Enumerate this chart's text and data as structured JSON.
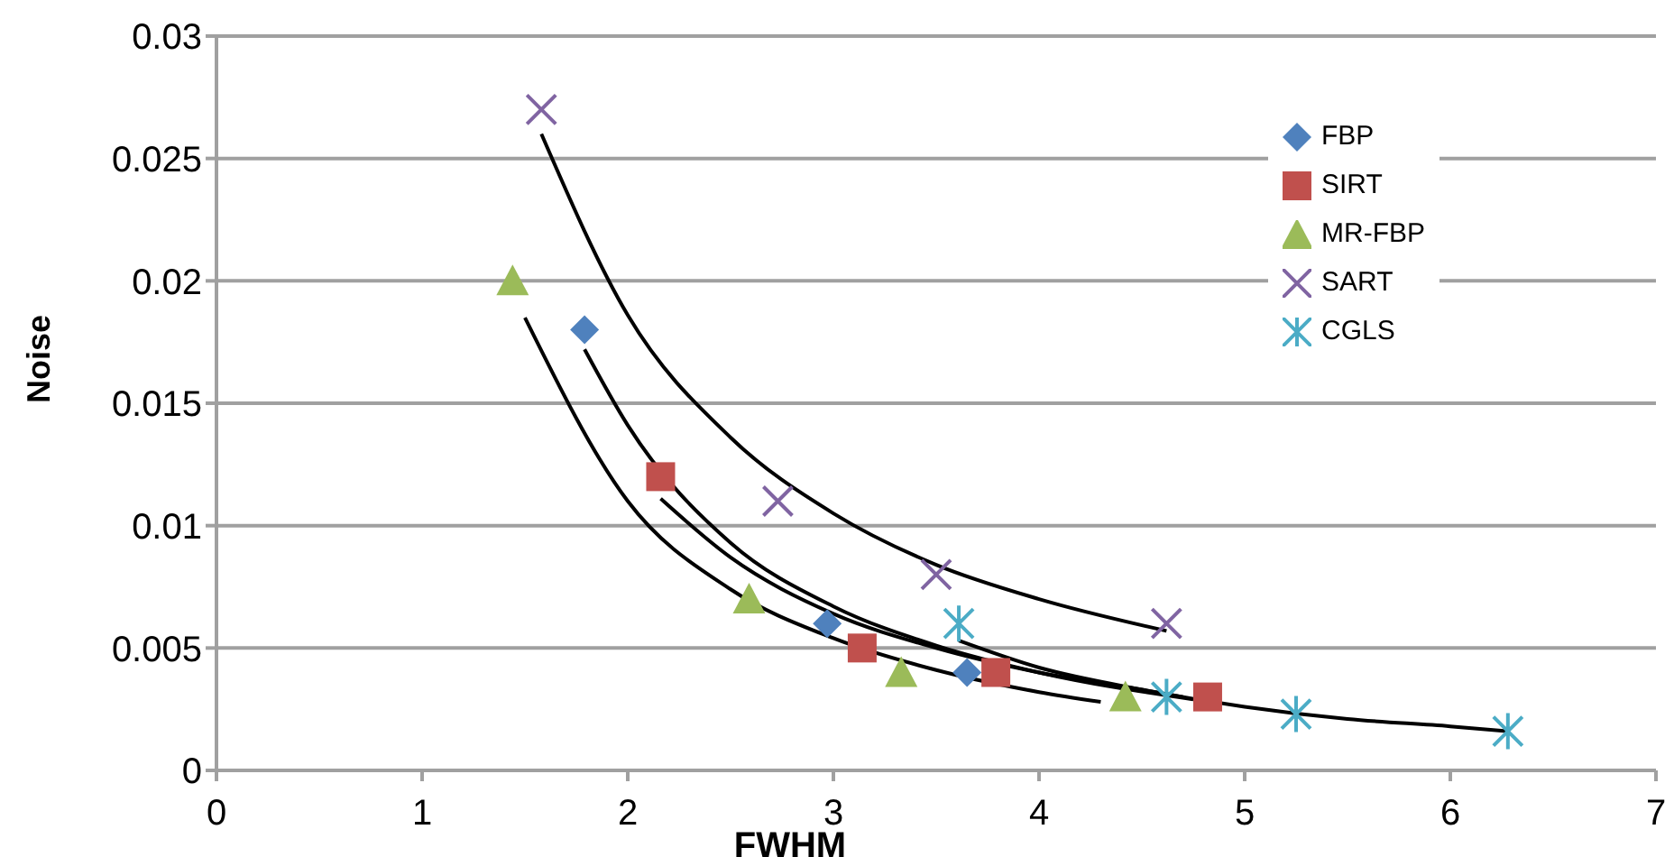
{
  "chart_data": {
    "type": "scatter",
    "xlabel": "FWHM",
    "ylabel": "Noise",
    "xlim": [
      0,
      7
    ],
    "xticks": [
      0,
      1,
      2,
      3,
      4,
      5,
      6,
      7
    ],
    "ylim": [
      0,
      0.03
    ],
    "yticks": [
      0,
      0.005,
      0.01,
      0.015,
      0.02,
      0.025,
      0.03
    ],
    "grid": "y",
    "legend": "top right",
    "series": [
      {
        "name": "FBP",
        "color": "#4f81bd",
        "marker": "diamond",
        "x": [
          1.79,
          2.97,
          3.65
        ],
        "values": [
          0.018,
          0.006,
          0.004
        ]
      },
      {
        "name": "SIRT",
        "color": "#c0504d",
        "marker": "square",
        "x": [
          2.16,
          3.14,
          3.79,
          4.82
        ],
        "values": [
          0.012,
          0.005,
          0.004,
          0.003
        ]
      },
      {
        "name": "MR-FBP",
        "color": "#9bbb59",
        "marker": "triangle",
        "x": [
          1.44,
          2.59,
          3.33,
          4.42
        ],
        "values": [
          0.02,
          0.007,
          0.004,
          0.003
        ]
      },
      {
        "name": "SART",
        "color": "#8064a2",
        "marker": "cross",
        "x": [
          1.58,
          2.73,
          3.5,
          4.62
        ],
        "values": [
          0.027,
          0.011,
          0.008,
          0.006
        ]
      },
      {
        "name": "CGLS",
        "color": "#4bacc6",
        "x": [
          3.61,
          4.62,
          5.25,
          6.28
        ],
        "values": [
          0.006,
          0.003,
          0.0023,
          0.0016
        ]
      },
      {
        "type": "line",
        "color": "#000000",
        "x": [
          1.58,
          2,
          2.5,
          3,
          3.5,
          4,
          4.62
        ],
        "values": [
          0.026,
          0.0186,
          0.0136,
          0.0105,
          0.0084,
          0.007,
          0.0057
        ]
      },
      {
        "type": "line",
        "color": "#000000",
        "x": [
          1.79,
          2,
          2.5,
          3,
          3.5,
          4,
          4.75
        ],
        "values": [
          0.0172,
          0.0141,
          0.0093,
          0.0067,
          0.0051,
          0.004,
          0.0029
        ]
      },
      {
        "type": "line",
        "color": "#000000",
        "x": [
          2.16,
          2.5,
          3,
          3.5,
          4,
          4.5,
          4.7
        ],
        "values": [
          0.0111,
          0.0087,
          0.0064,
          0.005,
          0.004,
          0.0033,
          0.003
        ]
      },
      {
        "type": "line",
        "color": "#000000",
        "x": [
          1.5,
          2,
          2.5,
          3,
          3.5,
          4,
          4.3
        ],
        "values": [
          0.0185,
          0.011,
          0.0074,
          0.0054,
          0.0041,
          0.0032,
          0.0028
        ]
      },
      {
        "type": "line",
        "color": "#000000",
        "x": [
          3.61,
          4,
          4.5,
          5,
          5.5,
          6,
          6.28
        ],
        "values": [
          0.0053,
          0.0042,
          0.0033,
          0.0026,
          0.0021,
          0.0018,
          0.0016
        ]
      }
    ]
  }
}
